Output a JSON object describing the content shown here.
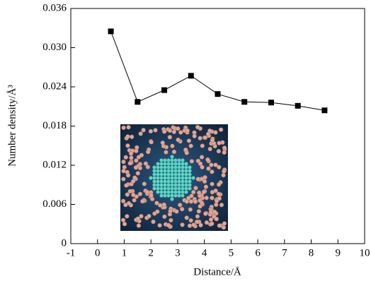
{
  "chart_data": {
    "type": "line",
    "x": [
      0.5,
      1.5,
      2.5,
      3.5,
      4.5,
      5.5,
      6.5,
      7.5,
      8.5
    ],
    "values": [
      0.0325,
      0.0217,
      0.0235,
      0.0257,
      0.0229,
      0.0217,
      0.0216,
      0.0211,
      0.0204
    ],
    "color": "#000000",
    "xlabel": "Distance/Å",
    "ylabel": "Number density/Å³",
    "xlim": [
      -1,
      10
    ],
    "xticks": [
      -1,
      0,
      1,
      2,
      3,
      4,
      5,
      6,
      7,
      8,
      9,
      10
    ],
    "ylim": [
      0,
      0.036
    ],
    "yticks": [
      0,
      0.006,
      0.012,
      0.018,
      0.024,
      {
        "value": 0.03,
        "label": "0.030"
      },
      0.036
    ],
    "grid": false
  }
}
